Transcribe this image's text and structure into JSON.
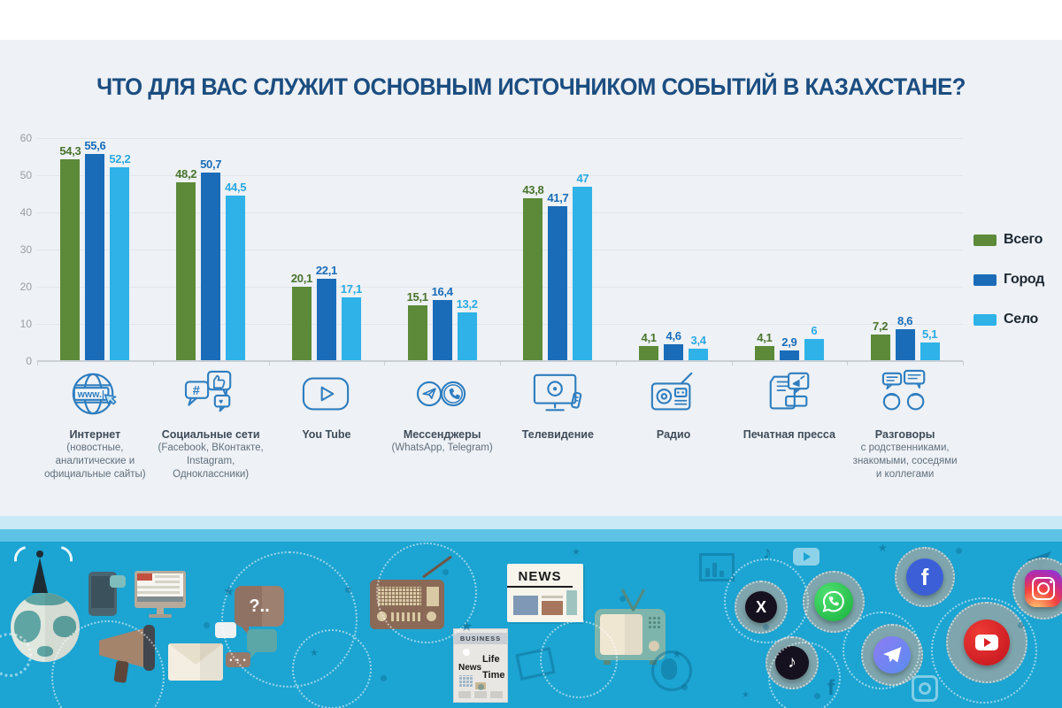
{
  "chart_data": {
    "type": "bar",
    "title": "ЧТО ДЛЯ ВАС СЛУЖИТ ОСНОВНЫМ ИСТОЧНИКОМ СОБЫТИЙ В КАЗАХСТАНЕ?",
    "ylim": [
      0,
      60
    ],
    "yticks": [
      0,
      10,
      20,
      30,
      40,
      50,
      60
    ],
    "grid": true,
    "legend_position": "right",
    "categories": [
      {
        "label": "Интернет",
        "sublabel": "(новостные, аналитические и официальные сайты)",
        "icon": "internet-globe-icon"
      },
      {
        "label": "Социальные сети",
        "sublabel": "(Facebook, ВКонтакте, Instagram, Одноклассники)",
        "icon": "social-networks-icon"
      },
      {
        "label": "You Tube",
        "sublabel": "",
        "icon": "youtube-icon"
      },
      {
        "label": "Мессенджеры",
        "sublabel": "(WhatsApp, Telegram)",
        "icon": "messengers-icon"
      },
      {
        "label": "Телевидение",
        "sublabel": "",
        "icon": "tv-icon"
      },
      {
        "label": "Радио",
        "sublabel": "",
        "icon": "radio-icon"
      },
      {
        "label": "Печатная пресса",
        "sublabel": "",
        "icon": "press-icon"
      },
      {
        "label": "Разговоры",
        "sublabel": "с родственниками, знакомыми, соседями и коллегами",
        "icon": "conversations-icon"
      }
    ],
    "series": [
      {
        "name": "Всего",
        "color": "#5c8a39",
        "label_color": "#49742e",
        "values": [
          54.3,
          48.2,
          20.1,
          15.1,
          43.8,
          4.1,
          4.1,
          7.2
        ]
      },
      {
        "name": "Город",
        "color": "#1a6cb8",
        "label_color": "#1a6cb8",
        "values": [
          55.6,
          50.7,
          22.1,
          16.4,
          41.7,
          4.6,
          2.9,
          8.6
        ]
      },
      {
        "name": "Село",
        "color": "#2fb2e8",
        "label_color": "#2aa9e2",
        "values": [
          52.2,
          44.5,
          17.1,
          13.2,
          47,
          3.4,
          6,
          5.1
        ]
      }
    ]
  },
  "icon_glyphs": {
    "www": "www.|",
    "hash": "#",
    "heart": "♥",
    "star": "★",
    "note": "♪",
    "x_letter": "X",
    "facebook_f": "f",
    "dots": "• • •"
  },
  "band": {
    "question_bubble": "?..",
    "news_label": "NEWS",
    "business_label": "BUSINESS",
    "magazine_lines": [
      "News",
      "Life",
      "Time"
    ],
    "social_icons": [
      {
        "name": "x-icon",
        "glyph": "X"
      },
      {
        "name": "whatsapp-icon",
        "glyph": ""
      },
      {
        "name": "facebook-icon",
        "glyph": "f"
      },
      {
        "name": "instagram-icon",
        "glyph": ""
      },
      {
        "name": "tiktok-icon",
        "glyph": "♪"
      },
      {
        "name": "telegram-icon",
        "glyph": ""
      },
      {
        "name": "youtube-icon-band",
        "glyph": ""
      }
    ],
    "colors": {
      "band_teal": "#1ca4d2",
      "strip_light": "#c9e9f6",
      "strip_mid": "#5cc3e6",
      "x_bg": "#16111e",
      "tiktok_bg": "#16111e",
      "whatsapp_from": "#4fe071",
      "whatsapp_to": "#17b03c",
      "facebook_bg": "#3c5fd7",
      "youtube_from": "#ef3b36",
      "youtube_to": "#c1121c",
      "telegram_from": "#8d7bf2",
      "telegram_to": "#5a8df2",
      "instagram_gradient": [
        "#fed373",
        "#f6433e",
        "#c22b92",
        "#7c3bf0"
      ]
    }
  }
}
